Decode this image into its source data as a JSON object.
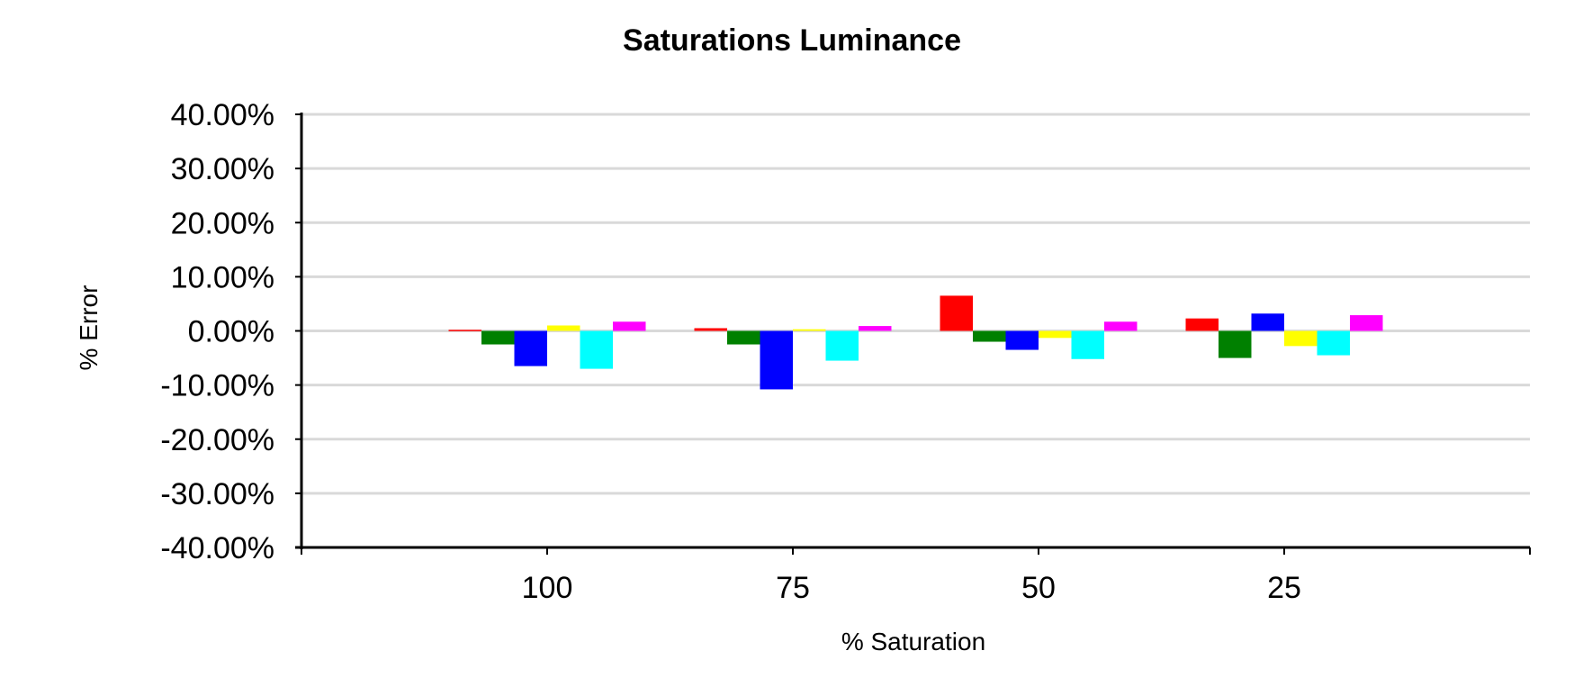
{
  "chart_data": {
    "type": "bar",
    "title": "Saturations Luminance",
    "xlabel": "% Saturation",
    "ylabel": "% Error",
    "categories": [
      "100",
      "75",
      "50",
      "25"
    ],
    "ylim": [
      -40,
      40
    ],
    "yticks": [
      40,
      30,
      20,
      10,
      0,
      -10,
      -20,
      -30,
      -40
    ],
    "ytick_labels": [
      "40.00%",
      "30.00%",
      "20.00%",
      "10.00%",
      "0.00%",
      "-10.00%",
      "-20.00%",
      "-30.00%",
      "-40.00%"
    ],
    "grid": true,
    "legend": "none",
    "series": [
      {
        "color": "#ff0000",
        "values": [
          0.2,
          0.5,
          6.5,
          2.3
        ]
      },
      {
        "color": "#008000",
        "values": [
          -2.5,
          -2.5,
          -2.0,
          -5.0
        ]
      },
      {
        "color": "#0000ff",
        "values": [
          -6.5,
          -10.8,
          -3.5,
          3.2
        ]
      },
      {
        "color": "#ffff00",
        "values": [
          1.0,
          0.3,
          -1.3,
          -2.8
        ]
      },
      {
        "color": "#00ffff",
        "values": [
          -7.0,
          -5.5,
          -5.2,
          -4.5
        ]
      },
      {
        "color": "#ff00ff",
        "values": [
          1.7,
          0.9,
          1.7,
          2.9
        ]
      }
    ]
  }
}
